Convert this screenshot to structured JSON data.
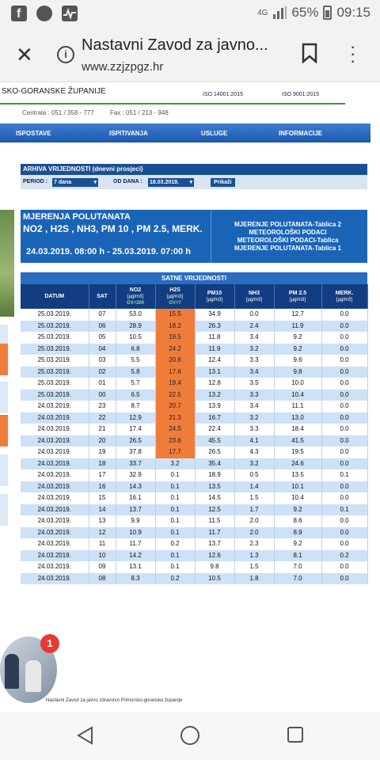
{
  "status_bar": {
    "network": "4G",
    "battery": "65%",
    "time": "09:15",
    "icons": [
      "facebook-icon",
      "messenger-icon",
      "activity-icon"
    ]
  },
  "browser": {
    "title": "Nastavni Zavod za javno...",
    "url": "www.zzjzpgz.hr"
  },
  "site": {
    "county": "SKO-GORANSKE ŽUPANIJE",
    "iso1": "ISO 14001:2015",
    "iso2": "ISO 9001:2015",
    "phone": "Centrala : 051 / 358 - 777",
    "fax": "Fax : 051 / 213 - 948",
    "nav": [
      "ISPOSTAVE",
      "ISPITIVANJA",
      "USLUGE",
      "INFORMACIJE"
    ]
  },
  "archive": {
    "title": "ARHIVA VRIJEDNOSTI (dnevni prosjeci)",
    "period_label": "PERIOD :",
    "period_value": "7 dana",
    "od_dana_label": "OD DANA :",
    "od_dana_value": "18.03.2019.",
    "show_button": "Prikaži"
  },
  "measurement": {
    "title": "MJERENJA POLUTANATA",
    "pollutants": "NO2 , H2S , NH3, PM 10 , PM 2.5, MERK.",
    "date_range": "24.03.2019. 08:00 h - 25.03.2019. 07:00 h",
    "links": [
      "MJERENJE POLUTANATA-Tablica 2",
      "METEOROLOŠKI PODACI",
      "METEOROLOŠKI PODACI-Tablica",
      "MJERENJE POLUTANATA-Tablica 1"
    ]
  },
  "table": {
    "caption": "SATNE VRIJEDNOSTI",
    "headers": [
      {
        "name": "DATUM",
        "unit": "",
        "gv": ""
      },
      {
        "name": "SAT",
        "unit": "",
        "gv": ""
      },
      {
        "name": "NO2",
        "unit": "[µg/m3]",
        "gv": "GV=200"
      },
      {
        "name": "H2S",
        "unit": "[µg/m3]",
        "gv": "GV=7"
      },
      {
        "name": "PM10",
        "unit": "[µg/m3]",
        "gv": ""
      },
      {
        "name": "NH3",
        "unit": "[µg/m3]",
        "gv": ""
      },
      {
        "name": "PM 2.5",
        "unit": "[µg/m3]",
        "gv": ""
      },
      {
        "name": "MERK.",
        "unit": "[µg/m3]",
        "gv": ""
      }
    ],
    "rows": [
      [
        "25.03.2019.",
        "07",
        "53.0",
        "15.5",
        "34.9",
        "0.0",
        "12.7",
        "0.0"
      ],
      [
        "25.03.2019.",
        "06",
        "28.9",
        "18.2",
        "26.3",
        "2.4",
        "11.9",
        "0.0"
      ],
      [
        "25.03.2019.",
        "05",
        "10.5",
        "19.5",
        "11.8",
        "3.4",
        "9.2",
        "0.0"
      ],
      [
        "25.03.2019.",
        "04",
        "6.8",
        "24.2",
        "11.9",
        "3.2",
        "9.2",
        "0.0"
      ],
      [
        "25.03.2019.",
        "03",
        "5.5",
        "20.6",
        "12.4",
        "3.3",
        "9.6",
        "0.0"
      ],
      [
        "25.03.2019.",
        "02",
        "5.8",
        "17.6",
        "13.1",
        "3.4",
        "9.8",
        "0.0"
      ],
      [
        "25.03.2019.",
        "01",
        "5.7",
        "19.4",
        "12.8",
        "3.5",
        "10.0",
        "0.0"
      ],
      [
        "25.03.2019.",
        "00",
        "6.5",
        "22.5",
        "13.2",
        "3.3",
        "10.4",
        "0.0"
      ],
      [
        "24.03.2019.",
        "23",
        "8.7",
        "20.7",
        "13.9",
        "3.4",
        "11.1",
        "0.0"
      ],
      [
        "24.03.2019.",
        "22",
        "12.9",
        "21.3",
        "16.7",
        "3.2",
        "13.0",
        "0.0"
      ],
      [
        "24.03.2019.",
        "21",
        "17.4",
        "24.5",
        "22.4",
        "3.3",
        "18.4",
        "0.0"
      ],
      [
        "24.03.2019.",
        "20",
        "26.5",
        "23.6",
        "45.5",
        "4.1",
        "41.5",
        "0.0"
      ],
      [
        "24.03.2019.",
        "19",
        "37.8",
        "17.7",
        "26.5",
        "4.3",
        "19.5",
        "0.0"
      ],
      [
        "24.03.2019.",
        "18",
        "33.7",
        "3.2",
        "35.4",
        "3.2",
        "24.6",
        "0.0"
      ],
      [
        "24.03.2019.",
        "17",
        "32.9",
        "0.1",
        "18.9",
        "0.5",
        "13.5",
        "0.1"
      ],
      [
        "24.03.2019.",
        "16",
        "14.3",
        "0.1",
        "13.5",
        "1.4",
        "10.1",
        "0.0"
      ],
      [
        "24.03.2019.",
        "15",
        "16.1",
        "0.1",
        "14.5",
        "1.5",
        "10.4",
        "0.0"
      ],
      [
        "24.03.2019.",
        "14",
        "13.7",
        "0.1",
        "12.5",
        "1.7",
        "9.2",
        "0.1"
      ],
      [
        "24.03.2019.",
        "13",
        "9.9",
        "0.1",
        "11.5",
        "2.0",
        "8.6",
        "0.0"
      ],
      [
        "24.03.2019.",
        "12",
        "10.9",
        "0.1",
        "11.7",
        "2.0",
        "8.9",
        "0.0"
      ],
      [
        "24.03.2019.",
        "11",
        "11.7",
        "0.2",
        "13.7",
        "2.3",
        "9.2",
        "0.0"
      ],
      [
        "24.03.2019.",
        "10",
        "14.2",
        "0.1",
        "12.6",
        "1.3",
        "8.1",
        "0.2"
      ],
      [
        "24.03.2019.",
        "09",
        "13.1",
        "0.1",
        "9.8",
        "1.5",
        "7.0",
        "0.0"
      ],
      [
        "24.03.2019.",
        "08",
        "8.3",
        "0.2",
        "10.5",
        "1.8",
        "7.0",
        "0.0"
      ]
    ],
    "highlight_color": "#f07c3a"
  },
  "chat_badge": "1",
  "footer": "Nastavni Zavod za javno zdravstvo Primorsko-goranske županije"
}
